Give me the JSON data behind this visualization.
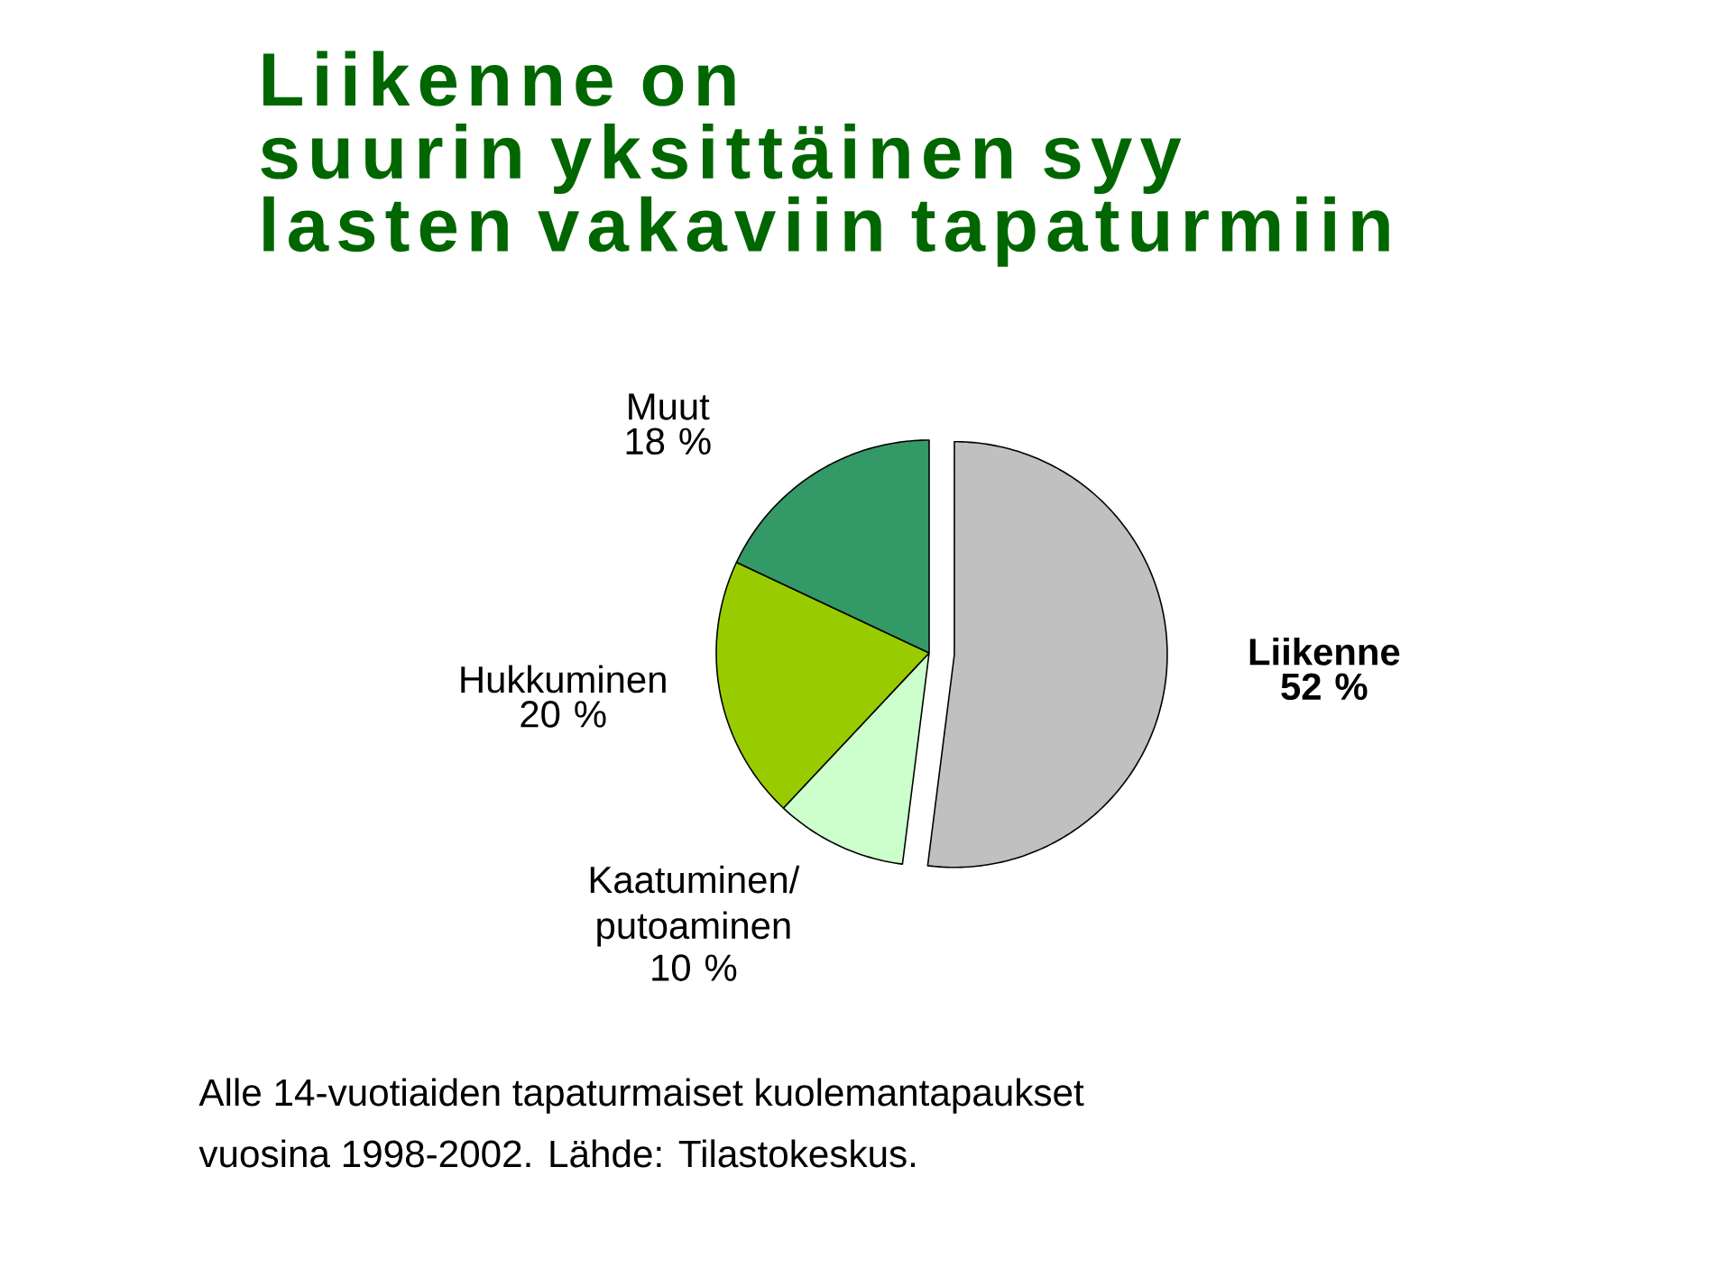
{
  "chart_data": {
    "type": "pie",
    "title": "Liikenne on suurin yksittäinen syy lasten vakaviin tapaturmiin",
    "categories": [
      "Liikenne",
      "Kaatuminen/putoaminen",
      "Hukkuminen",
      "Muut"
    ],
    "values": [
      52,
      10,
      20,
      18
    ],
    "value_labels": [
      "52 %",
      "10 %",
      "20 %",
      "18 %"
    ],
    "colors": [
      "#c0c0c0",
      "#ccffcc",
      "#99cc00",
      "#339966"
    ],
    "annotations": [
      "Alle 14-vuotiaiden tapaturmaiset kuolemantapaukset",
      "vuosina 1998-2002. Lähde: Tilastokeskus."
    ]
  }
}
